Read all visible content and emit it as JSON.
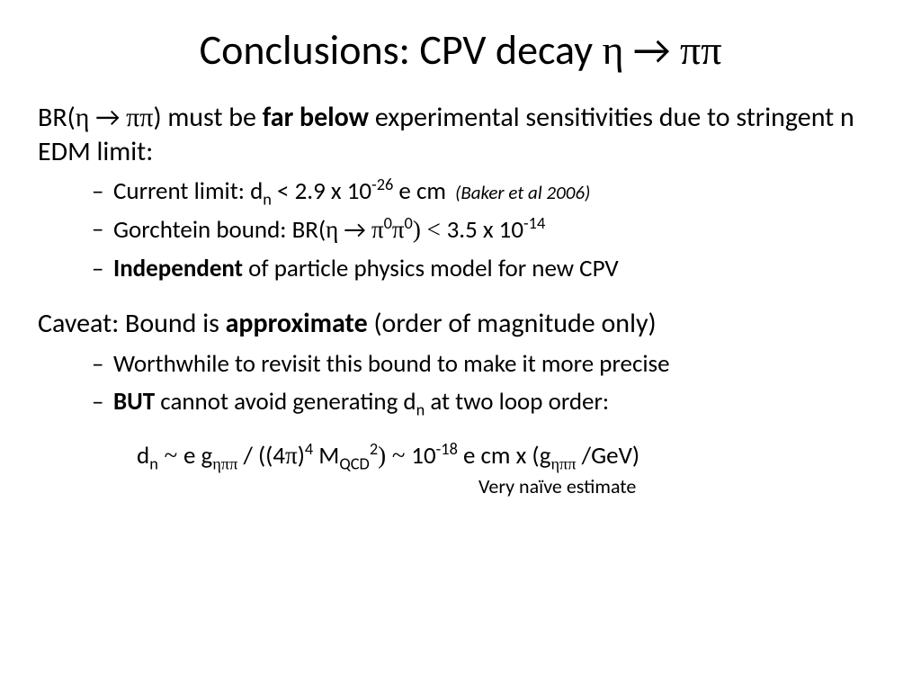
{
  "title": {
    "pre": "Conclusions:  CPV decay ",
    "eta": "η",
    "arrow": " → ",
    "pipi": "ππ"
  },
  "para1": {
    "pre": "BR(",
    "eta": "η",
    "arrow": " → ",
    "pipi": "ππ",
    "post1": ") must be ",
    "bold": "far below",
    "post2": " experimental sensitivities due to stringent n EDM limit:"
  },
  "list1": {
    "a_pre": "Current limit: d",
    "a_sub": "n",
    "a_mid": " < 2.9 x 10",
    "a_sup": "-26",
    "a_post": " e cm",
    "a_ref": "(Baker et al 2006)",
    "b_pre": "Gorchtein bound: BR(",
    "b_eta": "η",
    "b_arrow": " → ",
    "b_pi": "π",
    "b_sup0a": "0",
    "b_pi2": "π",
    "b_sup0b": "0",
    "b_lt": ") < ",
    "b_mid": "3.5 x 10",
    "b_sup": "-14",
    "c_bold": "Independent",
    "c_post": " of particle physics model for new CPV"
  },
  "para2": {
    "pre": "Caveat:  Bound is ",
    "bold": "approximate",
    "post": " (order of magnitude only)"
  },
  "list2": {
    "a": "Worthwhile to revisit this bound to make it more precise",
    "b_bold": "BUT",
    "b_mid": " cannot avoid generating d",
    "b_sub": "n",
    "b_post": " at two loop order:"
  },
  "formula": {
    "d": "d",
    "dn": "n",
    "sim1": " ~ ",
    "eg": "e g",
    "etapipi": "ηππ",
    "mid1": " / ((4",
    "pi": "π",
    "rp": ")",
    "p4": "4",
    "m": " M",
    "qcd": "QCD",
    "p2": "2",
    "sim2": ") ~ ",
    "mid2": "10",
    "m18": "-18",
    "mid3": " e cm x (g",
    "etapipi2": "ηππ",
    "end": " /GeV)"
  },
  "footnote": "Very naïve estimate"
}
